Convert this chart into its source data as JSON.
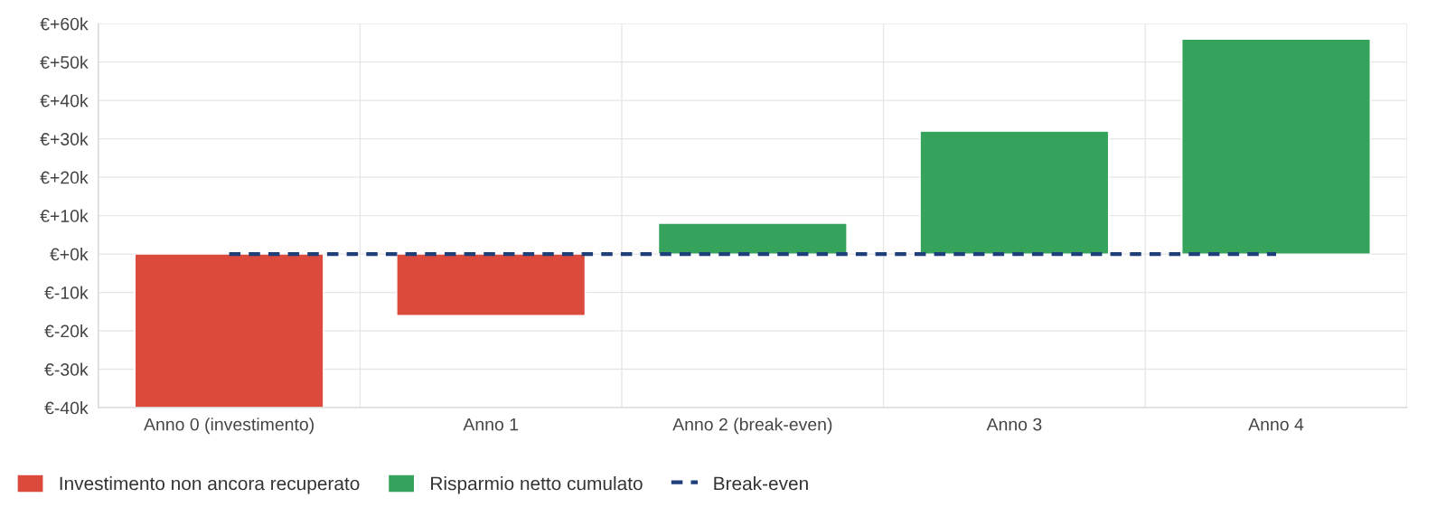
{
  "chart_data": {
    "type": "bar",
    "categories": [
      "Anno 0 (investimento)",
      "Anno 1",
      "Anno 2 (break-even)",
      "Anno 3",
      "Anno 4"
    ],
    "series": [
      {
        "name": "Investimento non ancora recuperato",
        "color": "#db4a3d",
        "values": [
          -40,
          -16,
          null,
          null,
          null
        ]
      },
      {
        "name": "Risparmio netto cumulato",
        "color": "#35a35c",
        "values": [
          null,
          null,
          8,
          32,
          56
        ]
      },
      {
        "name": "Break-even",
        "type": "line",
        "color": "#1f3f7a",
        "line_style": "dashed",
        "values": [
          0,
          0,
          0,
          0,
          0
        ]
      }
    ],
    "ylim": [
      -40,
      60
    ],
    "yticks": [
      {
        "value": -40,
        "label": "€-40k"
      },
      {
        "value": -30,
        "label": "€-30k"
      },
      {
        "value": -20,
        "label": "€-20k"
      },
      {
        "value": -10,
        "label": "€-10k"
      },
      {
        "value": 0,
        "label": "€+0k"
      },
      {
        "value": 10,
        "label": "€+10k"
      },
      {
        "value": 20,
        "label": "€+20k"
      },
      {
        "value": 30,
        "label": "€+30k"
      },
      {
        "value": 40,
        "label": "€+40k"
      },
      {
        "value": 50,
        "label": "€+50k"
      },
      {
        "value": 60,
        "label": "€+60k"
      }
    ],
    "grid": true,
    "legend": "bottom left"
  }
}
